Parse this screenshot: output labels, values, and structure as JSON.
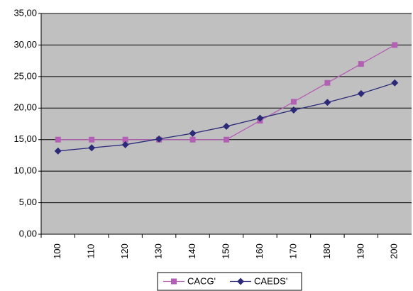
{
  "chart_data": {
    "type": "line",
    "categories": [
      "100",
      "110",
      "120",
      "130",
      "140",
      "150",
      "160",
      "170",
      "180",
      "190",
      "200"
    ],
    "series": [
      {
        "name": "CACG'",
        "color": "#b35fb3",
        "marker": "square",
        "values": [
          15,
          15,
          15,
          15,
          15,
          15,
          18,
          21,
          24,
          27,
          30
        ]
      },
      {
        "name": "CAEDS'",
        "color": "#2b2a78",
        "marker": "diamond",
        "values": [
          13.2,
          13.7,
          14.2,
          15.1,
          16.0,
          17.1,
          18.4,
          19.7,
          20.9,
          22.3,
          24.0
        ]
      }
    ],
    "ylim": [
      0,
      35
    ],
    "yticks": [
      {
        "value": 0,
        "label": "0,00"
      },
      {
        "value": 5,
        "label": "5,00"
      },
      {
        "value": 10,
        "label": "10,00"
      },
      {
        "value": 15,
        "label": "15,00"
      },
      {
        "value": 20,
        "label": "20,00"
      },
      {
        "value": 25,
        "label": "25,00"
      },
      {
        "value": 30,
        "label": "30,00"
      },
      {
        "value": 35,
        "label": "35,00"
      }
    ],
    "grid": true,
    "legend": "bottom"
  }
}
